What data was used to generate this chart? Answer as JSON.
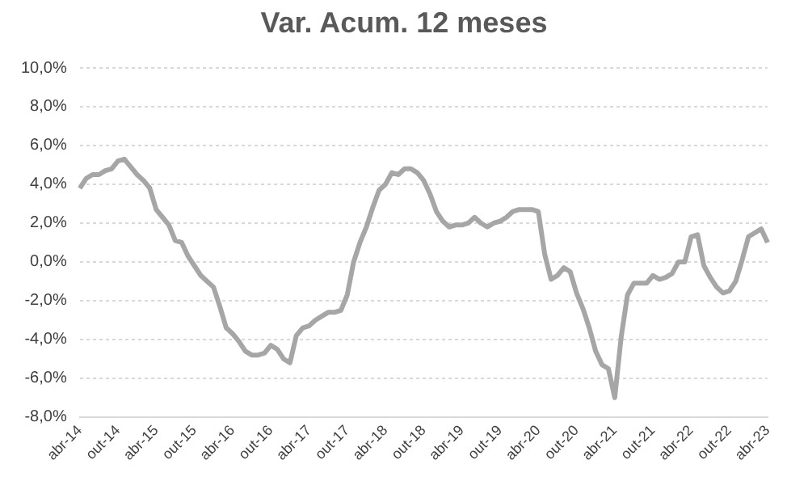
{
  "chart_data": {
    "type": "line",
    "title": "Var. Acum. 12 meses",
    "categories": [
      "abr-14",
      null,
      null,
      null,
      null,
      null,
      "out-14",
      null,
      null,
      null,
      null,
      null,
      "abr-15",
      null,
      null,
      null,
      null,
      null,
      "out-15",
      null,
      null,
      null,
      null,
      null,
      "abr-16",
      null,
      null,
      null,
      null,
      null,
      "out-16",
      null,
      null,
      null,
      null,
      null,
      "abr-17",
      null,
      null,
      null,
      null,
      null,
      "out-17",
      null,
      null,
      null,
      null,
      null,
      "abr-18",
      null,
      null,
      null,
      null,
      null,
      "out-18",
      null,
      null,
      null,
      null,
      null,
      "abr-19",
      null,
      null,
      null,
      null,
      null,
      "out-19",
      null,
      null,
      null,
      null,
      null,
      "abr-20",
      null,
      null,
      null,
      null,
      null,
      "out-20",
      null,
      null,
      null,
      null,
      null,
      "abr-21",
      null,
      null,
      null,
      null,
      null,
      "out-21",
      null,
      null,
      null,
      null,
      null,
      "abr-22",
      null,
      null,
      null,
      null,
      null,
      "out-22",
      null,
      null,
      null,
      null,
      null,
      "abr-23"
    ],
    "series": [
      {
        "color": "#a6a6a6",
        "values": [
          3.8,
          4.3,
          4.5,
          4.5,
          4.7,
          4.8,
          5.2,
          5.3,
          4.9,
          4.5,
          4.2,
          3.8,
          2.7,
          2.3,
          1.9,
          1.1,
          1.0,
          0.3,
          -0.2,
          -0.7,
          -1.0,
          -1.3,
          -2.3,
          -3.4,
          -3.7,
          -4.1,
          -4.6,
          -4.8,
          -4.8,
          -4.7,
          -4.3,
          -4.5,
          -5.0,
          -5.2,
          -3.8,
          -3.4,
          -3.3,
          -3.0,
          -2.8,
          -2.6,
          -2.6,
          -2.5,
          -1.7,
          0.0,
          1.0,
          1.8,
          2.8,
          3.7,
          4.0,
          4.6,
          4.5,
          4.8,
          4.8,
          4.6,
          4.2,
          3.5,
          2.6,
          2.1,
          1.8,
          1.9,
          1.9,
          2.0,
          2.3,
          2.0,
          1.8,
          2.0,
          2.1,
          2.3,
          2.6,
          2.7,
          2.7,
          2.7,
          2.6,
          0.4,
          -0.9,
          -0.7,
          -0.3,
          -0.5,
          -1.6,
          -2.4,
          -3.4,
          -4.6,
          -5.3,
          -5.5,
          -7.0,
          -3.9,
          -1.7,
          -1.1,
          -1.1,
          -1.1,
          -0.7,
          -0.9,
          -0.8,
          -0.6,
          0.0,
          0.0,
          1.3,
          1.4,
          -0.2,
          -0.8,
          -1.3,
          -1.6,
          -1.5,
          -1.0,
          0.1,
          1.3,
          1.5,
          1.7,
          1.0
        ]
      }
    ],
    "ylim": [
      -8,
      10
    ],
    "yticks": [
      {
        "value": -8,
        "label": "-8,0%"
      },
      {
        "value": -6,
        "label": "-6,0%"
      },
      {
        "value": -4,
        "label": "-4,0%"
      },
      {
        "value": -2,
        "label": "-2,0%"
      },
      {
        "value": 0,
        "label": "0,0%"
      },
      {
        "value": 2,
        "label": "2,0%"
      },
      {
        "value": 4,
        "label": "4,0%"
      },
      {
        "value": 6,
        "label": "6,0%"
      },
      {
        "value": 8,
        "label": "8,0%"
      },
      {
        "value": 10,
        "label": "10,0%"
      }
    ],
    "grid": "y",
    "legend": false,
    "marker": "none",
    "line_style": "solid"
  }
}
